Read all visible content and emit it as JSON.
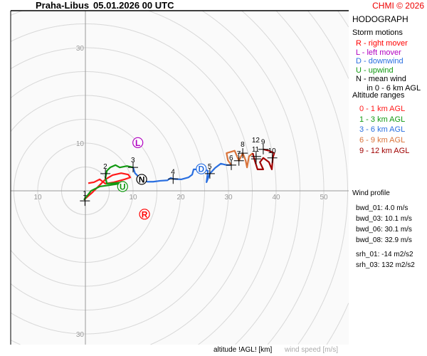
{
  "header": {
    "station": "Praha-Libus",
    "datetime": "05.01.2026 00 UTC",
    "copyright": "CHMI © 2026"
  },
  "panel": {
    "title": "HODOGRAPH",
    "storm_motions_title": "Storm motions",
    "storm_motions": [
      {
        "text": "R - right mover",
        "color": "#ff0000"
      },
      {
        "text": "L - left mover",
        "color": "#b000c0"
      },
      {
        "text": "D - downwind",
        "color": "#2a6fe0"
      },
      {
        "text": "U - upwind",
        "color": "#119911"
      },
      {
        "text": "N - mean wind",
        "color": "#000000"
      },
      {
        "text": "     in 0 - 6 km AGL",
        "color": "#000000"
      }
    ],
    "altitude_title": "Altitude ranges",
    "altitude_ranges": [
      {
        "text": "0 - 1 km AGL",
        "color": "#ff1a1a"
      },
      {
        "text": "1 - 3 km AGL",
        "color": "#119911"
      },
      {
        "text": "3 - 6 km AGL",
        "color": "#2a6fe0"
      },
      {
        "text": "6 - 9 km AGL",
        "color": "#d9733a"
      },
      {
        "text": "9 - 12 km AGL",
        "color": "#a00000"
      }
    ],
    "wind_profile_title": "Wind profile",
    "wind_profile": [
      "bwd_01: 4.0 m/s",
      "bwd_03: 10.1 m/s",
      "bwd_06: 30.1 m/s",
      "bwd_08: 32.9 m/s"
    ],
    "srh": [
      "srh_01: -14 m2/s2",
      "srh_03: 132 m2/s2"
    ]
  },
  "footer": {
    "altitude_label": "altitude !AGL! [km]",
    "speed_label": "wind speed [m/s]"
  },
  "chart_data": {
    "type": "line",
    "title": "HODOGRAPH",
    "ring_step": 5,
    "x_ticks": [
      {
        "v": -10,
        "label": "10"
      },
      {
        "v": 10,
        "label": "10"
      },
      {
        "v": 20,
        "label": "20"
      },
      {
        "v": 30,
        "label": "30"
      },
      {
        "v": 40,
        "label": "40"
      },
      {
        "v": 50,
        "label": "50"
      }
    ],
    "y_ticks": [
      {
        "v": 30,
        "label": "30"
      },
      {
        "v": 10,
        "label": "10"
      },
      {
        "v": -30,
        "label": "30"
      }
    ],
    "series": [
      {
        "name": "0 - 1 km AGL",
        "color": "#ff1a1a",
        "points": [
          [
            -0.3,
            -1.9
          ],
          [
            1.5,
            -0.3
          ],
          [
            3.0,
            1.2
          ],
          [
            4.2,
            2.4
          ],
          [
            5.7,
            3.3
          ],
          [
            7.5,
            3.7
          ],
          [
            9.0,
            3.4
          ],
          [
            9.4,
            2.8
          ],
          [
            8.2,
            2.4
          ],
          [
            6.0,
            1.8
          ],
          [
            4.2,
            1.5
          ],
          [
            3.0,
            2.4
          ],
          [
            1.8,
            1.8
          ],
          [
            0.6,
            1.6
          ]
        ]
      },
      {
        "name": "1 - 3 km AGL",
        "color": "#119911",
        "points": [
          [
            -0.3,
            -1.9
          ],
          [
            1.2,
            0
          ],
          [
            3.0,
            0.9
          ],
          [
            5.2,
            1.2
          ],
          [
            7.2,
            1.5
          ],
          [
            8.2,
            1.8
          ],
          [
            6.0,
            1.6
          ],
          [
            4.5,
            1.5
          ],
          [
            4.2,
            2.7
          ],
          [
            4.5,
            4.2
          ],
          [
            5.2,
            4.9
          ],
          [
            6.3,
            5.4
          ],
          [
            7.2,
            4.9
          ],
          [
            8.7,
            5.2
          ],
          [
            10,
            4.9
          ]
        ]
      },
      {
        "name": "3 - 6 km AGL",
        "color": "#2a6fe0",
        "points": [
          [
            10,
            4.9
          ],
          [
            10.4,
            3.7
          ],
          [
            11.6,
            2.5
          ],
          [
            13,
            1.9
          ],
          [
            14.2,
            1.9
          ],
          [
            15.7,
            2.1
          ],
          [
            17.2,
            2.2
          ],
          [
            17.9,
            2.7
          ],
          [
            18.4,
            2.5
          ],
          [
            20.1,
            2.4
          ],
          [
            21.6,
            2.8
          ],
          [
            22.4,
            3.4
          ],
          [
            22.7,
            4.5
          ],
          [
            23.6,
            4.5
          ],
          [
            24.3,
            4.6
          ],
          [
            25.7,
            4.2
          ],
          [
            25.4,
            1.8
          ],
          [
            26.1,
            3.6
          ],
          [
            27.2,
            4.8
          ],
          [
            28.4,
            5.7
          ],
          [
            29.6,
            5.4
          ],
          [
            30.6,
            5.4
          ]
        ]
      },
      {
        "name": "6 - 9 km AGL",
        "color": "#d9733a",
        "points": [
          [
            30.6,
            5.4
          ],
          [
            29.9,
            6.4
          ],
          [
            29.6,
            7.9
          ],
          [
            31.3,
            8.4
          ],
          [
            32.2,
            6.3
          ],
          [
            33,
            7.9
          ],
          [
            33.6,
            6.4
          ],
          [
            33.9,
            4.9
          ],
          [
            34.3,
            7.2
          ],
          [
            35.1,
            7.9
          ]
        ]
      },
      {
        "name": "9 - 12 km AGL",
        "color": "#a00000",
        "points": [
          [
            35.1,
            7.9
          ],
          [
            35.5,
            6.4
          ],
          [
            36.1,
            4.5
          ],
          [
            37.3,
            4.5
          ],
          [
            36.6,
            6.0
          ],
          [
            37.3,
            6.9
          ],
          [
            38.5,
            6.0
          ],
          [
            39.1,
            4.5
          ],
          [
            39.3,
            6.9
          ],
          [
            39.6,
            7.9
          ],
          [
            38.5,
            8.4
          ],
          [
            37.3,
            8.7
          ]
        ]
      }
    ],
    "height_markers": [
      {
        "label": "1",
        "u": -0.1,
        "v": -2.1
      },
      {
        "label": "2",
        "u": 4.2,
        "v": 3.6
      },
      {
        "label": "3",
        "u": 10,
        "v": 4.9
      },
      {
        "label": "4",
        "u": 18.4,
        "v": 2.5
      },
      {
        "label": "5",
        "u": 26.1,
        "v": 3.6
      },
      {
        "label": "6",
        "u": 30.6,
        "v": 5.4
      },
      {
        "label": "7",
        "u": 32.2,
        "v": 6.3
      },
      {
        "label": "8",
        "u": 33,
        "v": 7.9
      },
      {
        "label": "9",
        "u": 37.3,
        "v": 8.7
      },
      {
        "label": "10",
        "u": 39.2,
        "v": 6.9
      },
      {
        "label": "11",
        "u": 35.8,
        "v": 7.2
      },
      {
        "label": "12",
        "u": 35.8,
        "v": 6.7
      }
    ],
    "storm_markers": [
      {
        "label": "R",
        "u": 12.4,
        "v": -4.9,
        "color": "#ff0000"
      },
      {
        "label": "L",
        "u": 11,
        "v": 10.1,
        "color": "#b000c0"
      },
      {
        "label": "D",
        "u": 24.3,
        "v": 4.6,
        "color": "#2a6fe0"
      },
      {
        "label": "U",
        "u": 7.8,
        "v": 0.9,
        "color": "#119911"
      },
      {
        "label": "N",
        "u": 11.8,
        "v": 2.4,
        "color": "#000000"
      }
    ]
  }
}
